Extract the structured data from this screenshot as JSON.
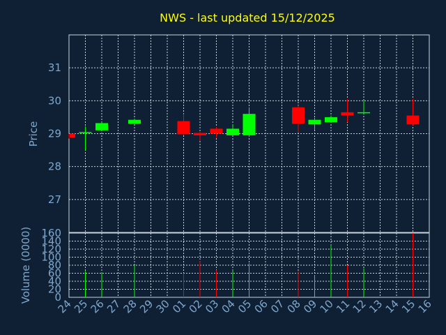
{
  "title": "NWS - last updated 15/12/2025",
  "colors": {
    "background": "#0f2035",
    "title": "#ffff00",
    "axis_text": "#7fa7cc",
    "grid": "#c8d4e0",
    "up": "#00ff00",
    "down": "#ff0000"
  },
  "chart_data": [
    {
      "type": "candlestick",
      "ylabel": "Price",
      "ylim": [
        26.0,
        32.0
      ],
      "yticks": [
        "27",
        "28",
        "29",
        "30",
        "31"
      ],
      "grid": true,
      "candles": [
        {
          "day": "24",
          "open": 29.0,
          "high": 29.0,
          "low": 28.85,
          "close": 28.88
        },
        {
          "day": "25",
          "open": 29.02,
          "high": 29.22,
          "low": 28.5,
          "close": 29.05
        },
        {
          "day": "26",
          "open": 29.1,
          "high": 29.35,
          "low": 29.1,
          "close": 29.32
        },
        {
          "day": "28",
          "open": 29.3,
          "high": 29.45,
          "low": 29.3,
          "close": 29.42
        },
        {
          "day": "01",
          "open": 29.38,
          "high": 29.6,
          "low": 28.95,
          "close": 28.98
        },
        {
          "day": "02",
          "open": 29.02,
          "high": 29.05,
          "low": 28.78,
          "close": 28.95
        },
        {
          "day": "03",
          "open": 29.15,
          "high": 29.2,
          "low": 28.88,
          "close": 29.0
        },
        {
          "day": "04",
          "open": 28.95,
          "high": 29.28,
          "low": 28.95,
          "close": 29.15
        },
        {
          "day": "05",
          "open": 28.95,
          "high": 29.8,
          "low": 28.9,
          "close": 29.6
        },
        {
          "day": "08",
          "open": 29.8,
          "high": 29.85,
          "low": 29.05,
          "close": 29.3
        },
        {
          "day": "09",
          "open": 29.28,
          "high": 29.48,
          "low": 29.12,
          "close": 29.42
        },
        {
          "day": "10",
          "open": 29.35,
          "high": 29.55,
          "low": 29.35,
          "close": 29.5
        },
        {
          "day": "11",
          "open": 29.65,
          "high": 30.05,
          "low": 29.35,
          "close": 29.55
        },
        {
          "day": "12",
          "open": 29.62,
          "high": 30.0,
          "low": 29.6,
          "close": 29.65
        },
        {
          "day": "15",
          "open": 29.55,
          "high": 30.05,
          "low": 29.25,
          "close": 29.28
        }
      ]
    },
    {
      "type": "bar",
      "xlabel": "Day",
      "ylabel": "Volume (0000)",
      "ylim": [
        0,
        160
      ],
      "yticks": [
        "0",
        "20",
        "40",
        "60",
        "80",
        "100",
        "120",
        "140",
        "160"
      ],
      "categories": [
        "24",
        "25",
        "26",
        "27",
        "28",
        "29",
        "30",
        "01",
        "02",
        "03",
        "04",
        "05",
        "06",
        "07",
        "08",
        "09",
        "10",
        "11",
        "12",
        "13",
        "14",
        "15",
        "16"
      ],
      "grid": true,
      "bars": [
        {
          "day": "25",
          "value": 65,
          "direction": "up"
        },
        {
          "day": "26",
          "value": 62,
          "direction": "up"
        },
        {
          "day": "28",
          "value": 80,
          "direction": "up"
        },
        {
          "day": "01",
          "value": 60,
          "direction": "down"
        },
        {
          "day": "02",
          "value": 90,
          "direction": "down"
        },
        {
          "day": "03",
          "value": 68,
          "direction": "down"
        },
        {
          "day": "04",
          "value": 68,
          "direction": "up"
        },
        {
          "day": "05",
          "value": 85,
          "direction": "up"
        },
        {
          "day": "08",
          "value": 65,
          "direction": "down"
        },
        {
          "day": "09",
          "value": 55,
          "direction": "up"
        },
        {
          "day": "10",
          "value": 130,
          "direction": "up"
        },
        {
          "day": "11",
          "value": 80,
          "direction": "down"
        },
        {
          "day": "12",
          "value": 72,
          "direction": "up"
        },
        {
          "day": "15",
          "value": 160,
          "direction": "down"
        }
      ]
    }
  ]
}
